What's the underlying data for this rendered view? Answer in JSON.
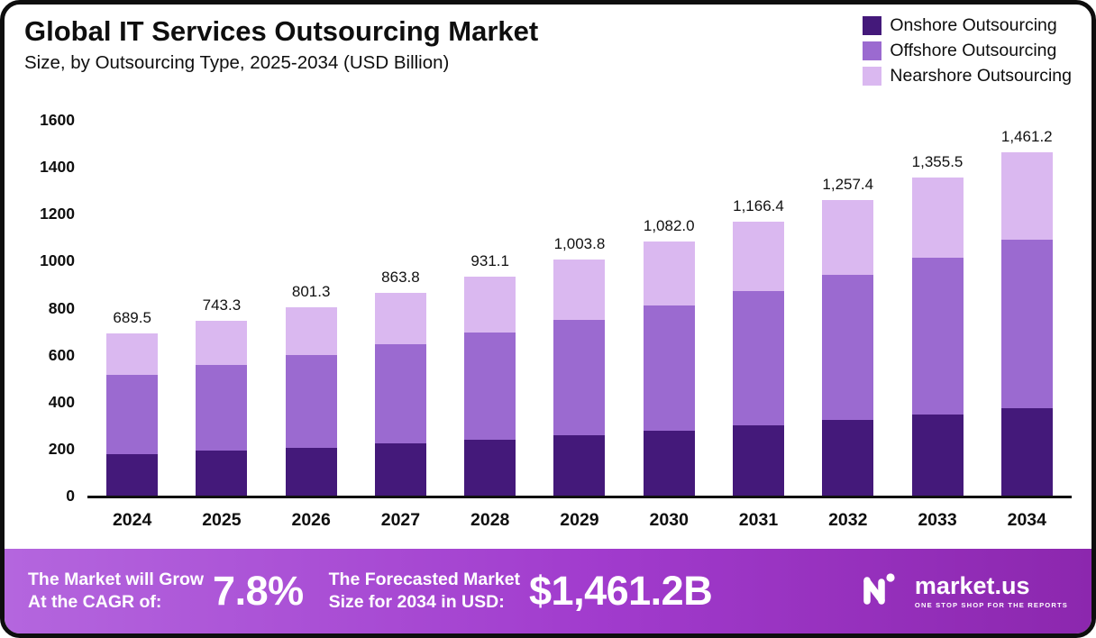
{
  "header": {
    "title": "Global IT Services Outsourcing Market",
    "subtitle": "Size, by Outsourcing Type, 2025-2034 (USD Billion)"
  },
  "chart_data": {
    "type": "bar",
    "stacked": true,
    "title": "Global IT Services Outsourcing Market Size, by Outsourcing Type, 2025-2034 (USD Billion)",
    "categories": [
      "2024",
      "2025",
      "2026",
      "2027",
      "2028",
      "2029",
      "2030",
      "2031",
      "2032",
      "2033",
      "2034"
    ],
    "series": [
      {
        "name": "Onshore Outsourcing",
        "color": "#44197a",
        "values": [
          176,
          190,
          205,
          221,
          238,
          257,
          277,
          299,
          322,
          347,
          374
        ]
      },
      {
        "name": "Offshore Outsourcing",
        "color": "#9b6ad0",
        "values": [
          339,
          365,
          393,
          424,
          457,
          493,
          531,
          573,
          617,
          665,
          717
        ]
      },
      {
        "name": "Nearshore Outsourcing",
        "color": "#dab8f0",
        "values": [
          174.5,
          188.3,
          203.3,
          218.8,
          236.1,
          253.8,
          274.0,
          294.4,
          318.4,
          343.5,
          370.2
        ]
      }
    ],
    "totals": [
      689.5,
      743.3,
      801.3,
      863.8,
      931.1,
      1003.8,
      1082.0,
      1166.4,
      1257.4,
      1355.5,
      1461.2
    ],
    "total_labels": [
      "689.5",
      "743.3",
      "801.3",
      "863.8",
      "931.1",
      "1,003.8",
      "1,082.0",
      "1,166.4",
      "1,257.4",
      "1,355.5",
      "1,461.2"
    ],
    "ylim": [
      0,
      1600
    ],
    "yticks": [
      0,
      200,
      400,
      600,
      800,
      1000,
      1200,
      1400,
      1600
    ],
    "grid": false,
    "legend_position": "top-right",
    "xlabel": "",
    "ylabel": ""
  },
  "footer": {
    "cagr_label_line1": "The Market will Grow",
    "cagr_label_line2": "At the CAGR of:",
    "cagr_value": "7.8%",
    "forecast_label_line1": "The Forecasted Market",
    "forecast_label_line2": "Size for 2034 in USD:",
    "forecast_value": "$1,461.2B",
    "brand_name": "market.us",
    "brand_tagline": "ONE STOP SHOP FOR THE REPORTS",
    "banner_gradient": [
      "#b466de",
      "#a13bcd",
      "#8c27ae"
    ]
  }
}
